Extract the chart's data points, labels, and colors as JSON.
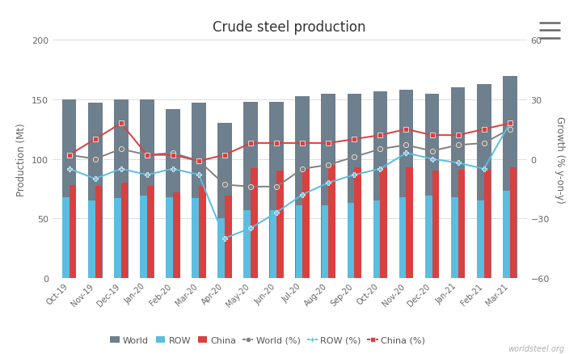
{
  "months": [
    "Oct-19",
    "Nov-19",
    "Dec-19",
    "Jan-20",
    "Feb-20",
    "Mar-20",
    "Apr-20",
    "May-20",
    "Jun-20",
    "Jul-20",
    "Aug-20",
    "Sep-20",
    "Oct-20",
    "Nov-20",
    "Dec-20",
    "Jan-21",
    "Feb-21",
    "Mar-21"
  ],
  "world_mt_vals": [
    150,
    147,
    150,
    150,
    142,
    147,
    130,
    148,
    148,
    153,
    155,
    155,
    157,
    158,
    155,
    160,
    163,
    170
  ],
  "row_mt_vals": [
    68,
    65,
    67,
    69,
    68,
    67,
    50,
    57,
    57,
    61,
    61,
    63,
    65,
    68,
    69,
    68,
    65,
    73
  ],
  "china_mt_vals": [
    78,
    77,
    80,
    77,
    72,
    77,
    69,
    92,
    90,
    93,
    95,
    93,
    92,
    93,
    90,
    91,
    91,
    93
  ],
  "world_pct_vals": [
    2,
    0,
    5,
    2,
    3,
    -1,
    -13,
    -14,
    -14,
    -5,
    -3,
    1,
    5,
    7,
    4,
    7,
    8,
    15
  ],
  "row_pct_vals": [
    -5,
    -10,
    -5,
    -8,
    -5,
    -8,
    -40,
    -35,
    -27,
    -18,
    -12,
    -8,
    -5,
    3,
    0,
    -2,
    -5,
    18
  ],
  "china_pct_vals": [
    2,
    10,
    18,
    2,
    2,
    -1,
    2,
    8,
    8,
    8,
    8,
    10,
    12,
    15,
    12,
    12,
    15,
    18
  ],
  "bar_world_color": "#6e7f8d",
  "bar_row_color": "#5bbde0",
  "bar_china_color": "#d94040",
  "line_world_color": "#808080",
  "line_row_color": "#5bbde0",
  "line_china_color": "#d94040",
  "title": "Crude steel production",
  "ylabel_left": "Production (Mt)",
  "ylabel_right": "Growth (% y-on-y)",
  "ylim_left": [
    0,
    200
  ],
  "ylim_right": [
    -60,
    60
  ],
  "yticks_left": [
    0,
    50,
    100,
    150,
    200
  ],
  "yticks_right": [
    -60,
    -30,
    0,
    30,
    60
  ],
  "background_color": "#ffffff",
  "watermark": "worldsteel.org"
}
